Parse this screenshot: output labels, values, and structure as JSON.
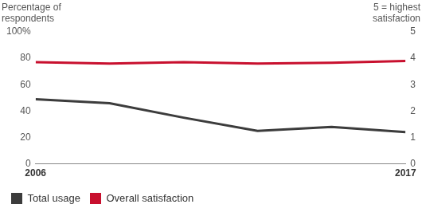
{
  "chart_data": {
    "type": "line",
    "y_label": "Percentage of respondents",
    "y2_label": "5 = highest satisfaction",
    "categories": [
      "2006",
      null,
      null,
      null,
      null,
      "2017"
    ],
    "series": [
      {
        "name": "Total usage",
        "color": "#3c3c3c",
        "values": [
          49,
          46,
          35,
          25,
          28,
          24
        ],
        "marker": "none",
        "line_style": "solid"
      },
      {
        "name": "Overall satisfaction",
        "color": "#c8102e",
        "axis": "y2",
        "values": [
          3.85,
          3.8,
          3.85,
          3.8,
          3.83,
          3.9
        ],
        "marker": "none",
        "line_style": "solid"
      }
    ],
    "ylim": [
      0,
      100
    ],
    "yticks": [
      0,
      20,
      40,
      60,
      80,
      {
        "value": 100,
        "label": "100%"
      }
    ],
    "y2lim": [
      0,
      5
    ],
    "y2ticks": [
      0,
      1,
      2,
      3,
      4,
      5
    ],
    "grid": false,
    "legend": "lower left"
  }
}
